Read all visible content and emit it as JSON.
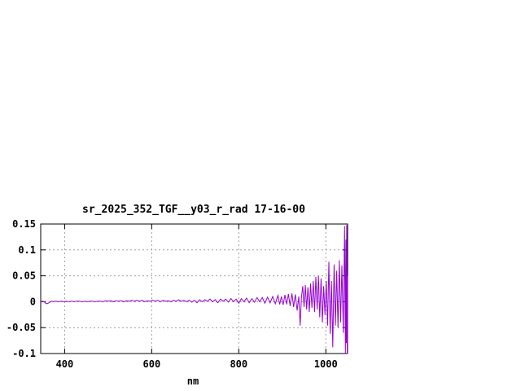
{
  "window": {
    "background": "#ffffff"
  },
  "chart_data": {
    "type": "line",
    "title": "sr_2025_352_TGF__y03_r_rad 17-16-00",
    "xlabel": "nm",
    "ylabel": "",
    "xlim": [
      345,
      1050
    ],
    "ylim": [
      -0.1,
      0.15
    ],
    "xticks": [
      400,
      600,
      800,
      1000
    ],
    "xtick_labels": [
      "400",
      "600",
      "800",
      "1000"
    ],
    "yticks": [
      0.15,
      0.1,
      0.05,
      0,
      -0.05,
      -0.1
    ],
    "ytick_labels": [
      "0.15",
      "0.1",
      "0.05",
      "0",
      "-0.05",
      "-0.1"
    ],
    "grid": true,
    "grid_color": "#9e9e9e",
    "border_color": "#000000",
    "legend": "none",
    "series": [
      {
        "name": "sr_2025_352_TGF__y03_r_rad",
        "color": "#9400d3",
        "points": [
          [
            345,
            0
          ],
          [
            350,
            0.001
          ],
          [
            354,
            -0.001
          ],
          [
            358,
            -0.004
          ],
          [
            362,
            -0.003
          ],
          [
            366,
            -0.001
          ],
          [
            370,
            0.001
          ],
          [
            375,
            0
          ],
          [
            380,
            0.001
          ],
          [
            386,
            0
          ],
          [
            392,
            0.001
          ],
          [
            398,
            0
          ],
          [
            404,
            0.001
          ],
          [
            410,
            0
          ],
          [
            416,
            0.001
          ],
          [
            422,
            0
          ],
          [
            428,
            0.001
          ],
          [
            434,
            0.001
          ],
          [
            440,
            0
          ],
          [
            446,
            0.001
          ],
          [
            452,
            0
          ],
          [
            458,
            0.001
          ],
          [
            464,
            0.001
          ],
          [
            470,
            0
          ],
          [
            476,
            0.001
          ],
          [
            482,
            0.001
          ],
          [
            488,
            0
          ],
          [
            494,
            0.002
          ],
          [
            500,
            0.001
          ],
          [
            506,
            0.002
          ],
          [
            512,
            0
          ],
          [
            518,
            0.002
          ],
          [
            524,
            0.001
          ],
          [
            530,
            0.002
          ],
          [
            536,
            0
          ],
          [
            542,
            0.002
          ],
          [
            548,
            0.001
          ],
          [
            554,
            0.003
          ],
          [
            560,
            0.001
          ],
          [
            566,
            0.003
          ],
          [
            572,
            0.001
          ],
          [
            578,
            0.003
          ],
          [
            584,
            0
          ],
          [
            590,
            0.002
          ],
          [
            596,
            0.001
          ],
          [
            602,
            0.003
          ],
          [
            608,
            0.001
          ],
          [
            614,
            0.003
          ],
          [
            620,
            0
          ],
          [
            626,
            0.003
          ],
          [
            632,
            0.001
          ],
          [
            638,
            0.002
          ],
          [
            644,
            0
          ],
          [
            650,
            0.003
          ],
          [
            656,
            0.001
          ],
          [
            662,
            0.004
          ],
          [
            668,
            0.001
          ],
          [
            674,
            0.003
          ],
          [
            680,
            0
          ],
          [
            686,
            0.003
          ],
          [
            692,
            -0.001
          ],
          [
            698,
            0.003
          ],
          [
            704,
            -0.002
          ],
          [
            710,
            0.004
          ],
          [
            716,
            0
          ],
          [
            722,
            0.004
          ],
          [
            728,
            0.001
          ],
          [
            734,
            0.005
          ],
          [
            740,
            0
          ],
          [
            746,
            0.004
          ],
          [
            752,
            -0.002
          ],
          [
            758,
            0.005
          ],
          [
            764,
            0.001
          ],
          [
            770,
            0.005
          ],
          [
            776,
            -0.001
          ],
          [
            782,
            0.006
          ],
          [
            788,
            0
          ],
          [
            794,
            0.005
          ],
          [
            800,
            -0.003
          ],
          [
            806,
            0.006
          ],
          [
            812,
            0
          ],
          [
            818,
            0.007
          ],
          [
            824,
            -0.002
          ],
          [
            830,
            0.006
          ],
          [
            836,
            -0.001
          ],
          [
            842,
            0.008
          ],
          [
            848,
            0
          ],
          [
            854,
            0.008
          ],
          [
            860,
            -0.003
          ],
          [
            866,
            0.009
          ],
          [
            872,
            -0.002
          ],
          [
            878,
            0.01
          ],
          [
            884,
            -0.004
          ],
          [
            890,
            0.012
          ],
          [
            894,
            -0.005
          ],
          [
            898,
            0.01
          ],
          [
            902,
            -0.006
          ],
          [
            906,
            0.013
          ],
          [
            910,
            -0.005
          ],
          [
            914,
            0.015
          ],
          [
            918,
            -0.008
          ],
          [
            922,
            0.016
          ],
          [
            926,
            -0.01
          ],
          [
            930,
            0.014
          ],
          [
            934,
            -0.017
          ],
          [
            938,
            0.01
          ],
          [
            941,
            -0.046
          ],
          [
            944,
            0.008
          ],
          [
            947,
            0.03
          ],
          [
            950,
            -0.01
          ],
          [
            953,
            0.032
          ],
          [
            956,
            -0.015
          ],
          [
            959,
            0.028
          ],
          [
            962,
            -0.02
          ],
          [
            965,
            0.035
          ],
          [
            968,
            -0.012
          ],
          [
            971,
            0.04
          ],
          [
            974,
            -0.02
          ],
          [
            977,
            0.048
          ],
          [
            980,
            -0.015
          ],
          [
            983,
            0.05
          ],
          [
            986,
            -0.03
          ],
          [
            989,
            0.045
          ],
          [
            992,
            -0.04
          ],
          [
            995,
            0.03
          ],
          [
            998,
            -0.025
          ],
          [
            1001,
            0.04
          ],
          [
            1004,
            -0.046
          ],
          [
            1007,
            0.077
          ],
          [
            1010,
            -0.062
          ],
          [
            1013,
            0.04
          ],
          [
            1016,
            -0.088
          ],
          [
            1019,
            0.072
          ],
          [
            1022,
            -0.046
          ],
          [
            1025,
            0.06
          ],
          [
            1028,
            -0.05
          ],
          [
            1031,
            0.08
          ],
          [
            1034,
            -0.04
          ],
          [
            1037,
            0.07
          ],
          [
            1040,
            -0.06
          ],
          [
            1043,
            0.146
          ],
          [
            1045,
            -0.1
          ],
          [
            1046,
            0.12
          ],
          [
            1047,
            -0.08
          ],
          [
            1048,
            0.148
          ],
          [
            1049,
            -0.1
          ],
          [
            1050,
            0.05
          ],
          [
            1050,
            -0.1
          ]
        ]
      }
    ]
  }
}
